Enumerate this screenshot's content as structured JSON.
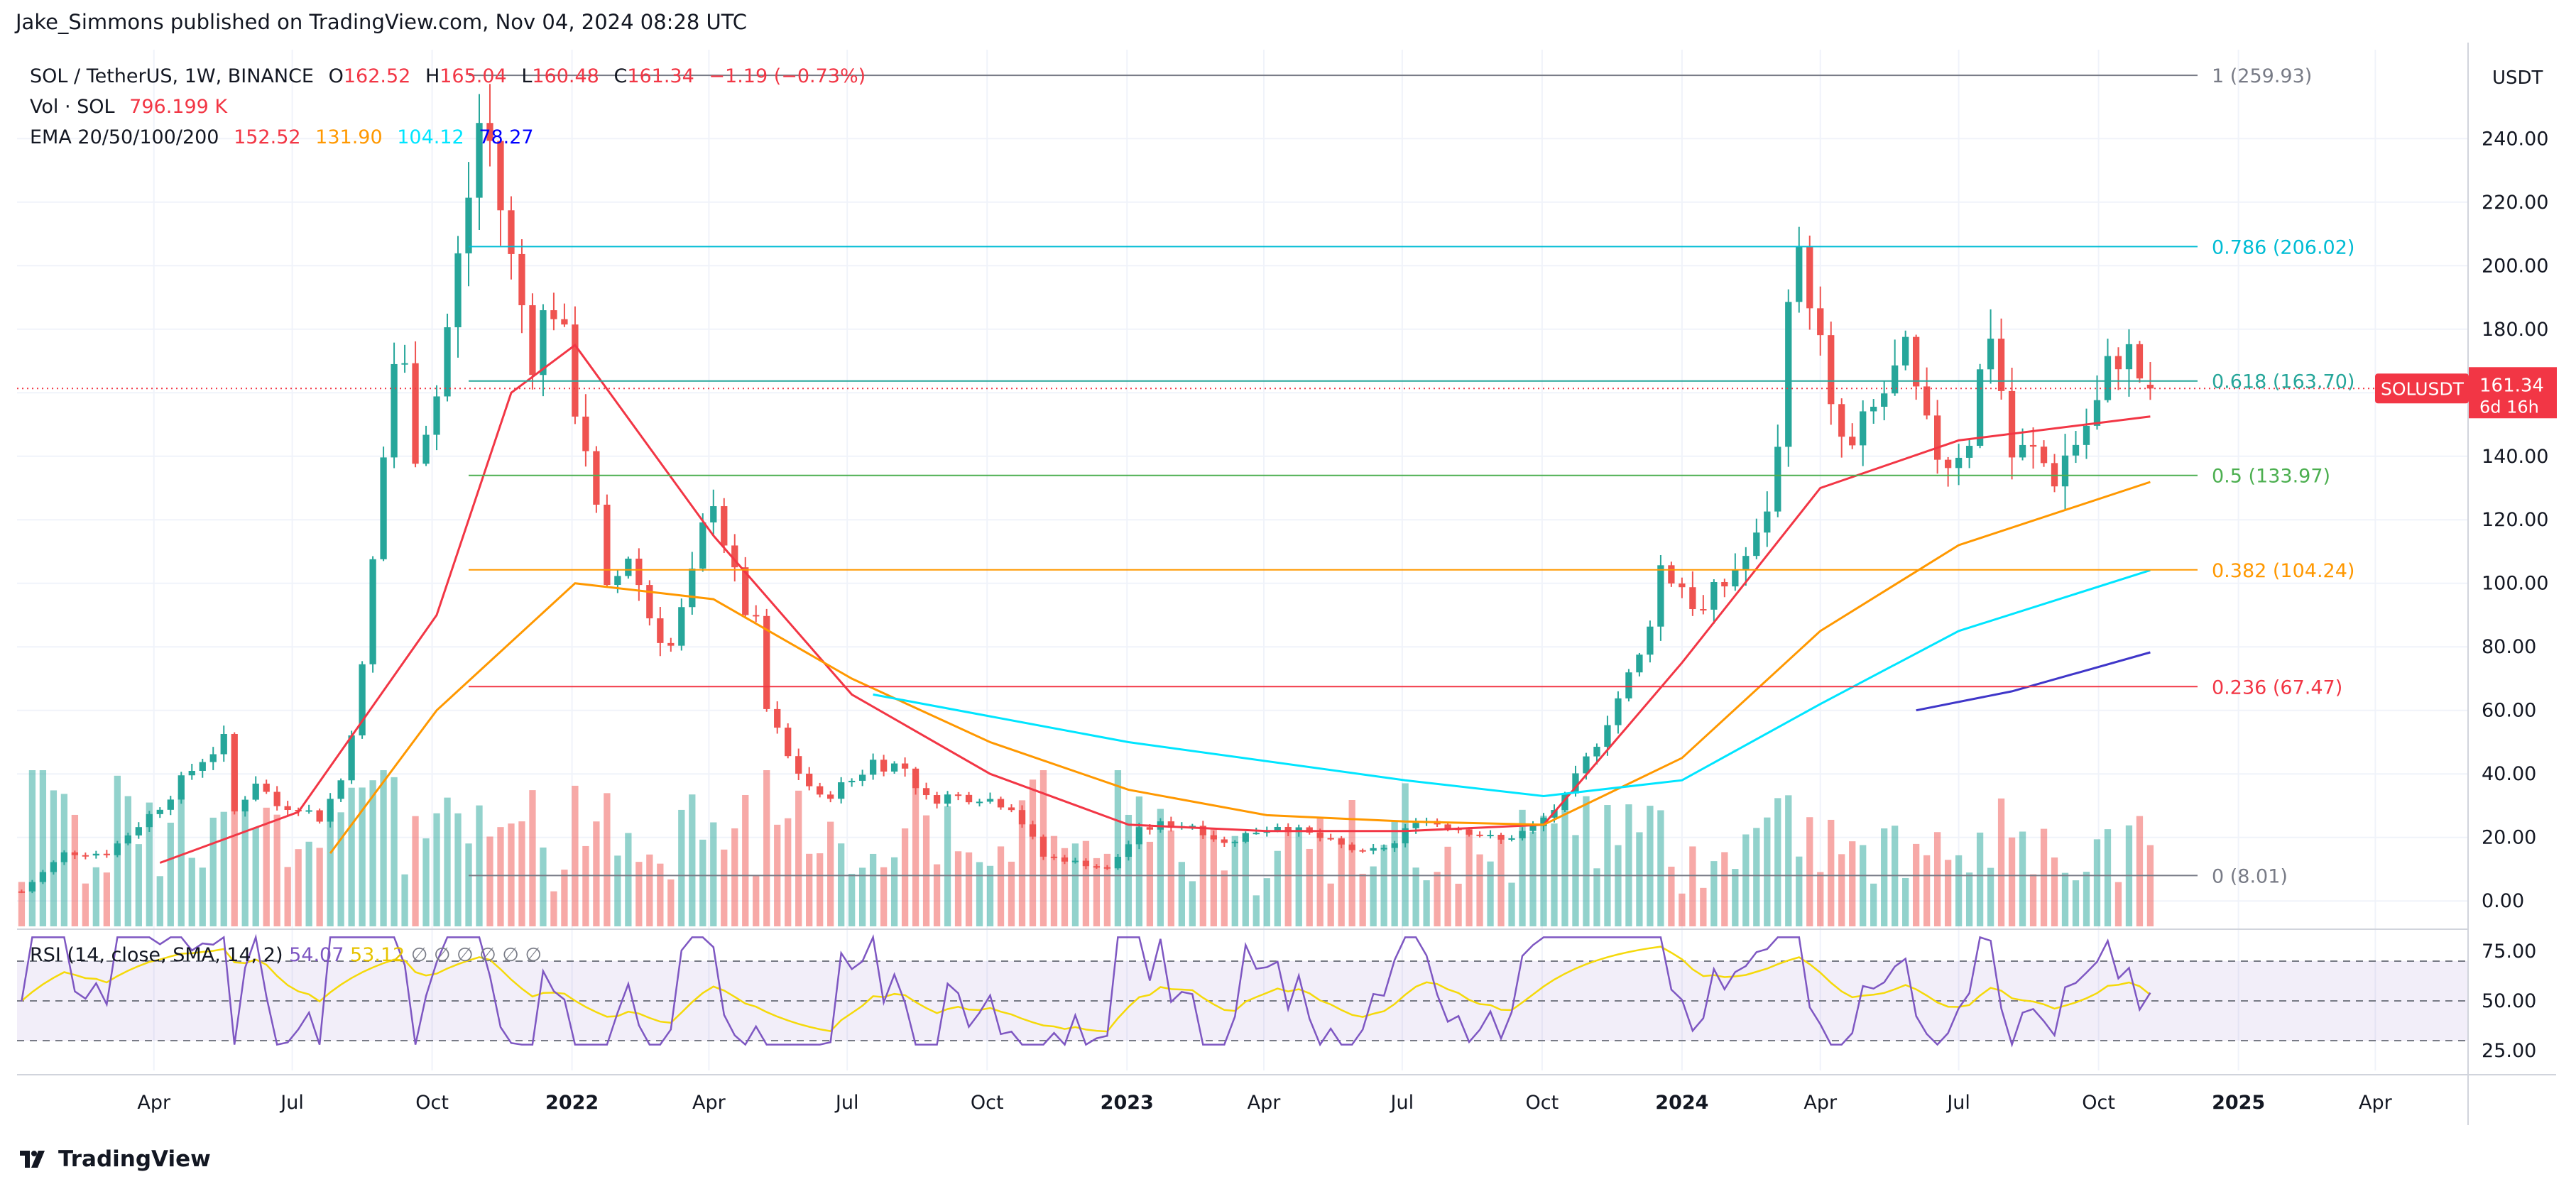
{
  "header": {
    "attribution": "Jake_Simmons published on TradingView.com, Nov 04, 2024 08:28 UTC"
  },
  "legend": {
    "symbol": "SOL / TetherUS, 1W, BINANCE",
    "open_label": "O",
    "open": "162.52",
    "high_label": "H",
    "high": "165.04",
    "low_label": "L",
    "low": "160.48",
    "close_label": "C",
    "close": "161.34",
    "change": "−1.19 (−0.73%)",
    "vol_label": "Vol · SOL",
    "vol_value": "796.199 K",
    "ema_label": "EMA 20/50/100/200",
    "ema20": "152.52",
    "ema50": "131.90",
    "ema100": "104.12",
    "ema200": "78.27"
  },
  "colors": {
    "up": "#26a69a",
    "down": "#ef5350",
    "ema20": "#f23645",
    "ema50": "#ff9800",
    "ema100": "#00e5ff",
    "ema200": "#3f36c9",
    "rsi": "#7e57c2",
    "rsi_sma": "#f5d90a",
    "fib_top": "#787b86",
    "fib_0786": "#00bcd4",
    "fib_0618": "#26a69a",
    "fib_05": "#4caf50",
    "fib_0382": "#ff9800",
    "fib_0236": "#f23645"
  },
  "chart_data": {
    "type": "candlestick",
    "unit": "USDT",
    "x_labels": [
      "Apr",
      "Jul",
      "Oct",
      "2022",
      "Apr",
      "Jul",
      "Oct",
      "2023",
      "Apr",
      "Jul",
      "Oct",
      "2024",
      "Apr",
      "Jul",
      "Oct",
      "2025",
      "Apr"
    ],
    "x_label_dates": [
      "2021-04-01",
      "2021-07-01",
      "2021-10-01",
      "2022-01-01",
      "2022-04-01",
      "2022-07-01",
      "2022-10-01",
      "2023-01-01",
      "2023-04-01",
      "2023-07-01",
      "2023-10-01",
      "2024-01-01",
      "2024-04-01",
      "2024-07-01",
      "2024-10-01",
      "2025-01-01",
      "2025-04-01"
    ],
    "y_ticks": [
      "0.00",
      "20.00",
      "40.00",
      "60.00",
      "80.00",
      "100.00",
      "120.00",
      "140.00",
      "160.00",
      "180.00",
      "200.00",
      "220.00",
      "240.00"
    ],
    "y_tick_values": [
      0,
      20,
      40,
      60,
      80,
      100,
      120,
      140,
      160,
      180,
      200,
      220,
      240
    ],
    "y_range": [
      -8,
      268
    ],
    "current_price": {
      "symbol": "SOLUSDT",
      "price": "161.34",
      "countdown": "6d 16h",
      "value": 161.34
    },
    "fib_levels": [
      {
        "label": "1 (259.93)",
        "value": 259.93
      },
      {
        "label": "0.786 (206.02)",
        "value": 206.02
      },
      {
        "label": "0.618 (163.70)",
        "value": 163.7
      },
      {
        "label": "0.5 (133.97)",
        "value": 133.97
      },
      {
        "label": "0.382 (104.24)",
        "value": 104.24
      },
      {
        "label": "0.236 (67.47)",
        "value": 67.47
      },
      {
        "label": "0 (8.01)",
        "value": 8.01
      }
    ],
    "fib_start_date": "2021-10-25",
    "series": [
      {
        "name": "SOL / TetherUS",
        "kind": "candles",
        "closes": [
          [
            "2021-01-04",
            3.0
          ],
          [
            "2021-02-01",
            15.0
          ],
          [
            "2021-03-01",
            15.0
          ],
          [
            "2021-04-05",
            30.0
          ],
          [
            "2021-05-03",
            45.0
          ],
          [
            "2021-05-17",
            50.0
          ],
          [
            "2021-05-24",
            28.0
          ],
          [
            "2021-06-07",
            38.0
          ],
          [
            "2021-06-21",
            30.0
          ],
          [
            "2021-07-05",
            30.0
          ],
          [
            "2021-07-19",
            26.0
          ],
          [
            "2021-08-02",
            38.0
          ],
          [
            "2021-08-16",
            72.0
          ],
          [
            "2021-08-30",
            140.0
          ],
          [
            "2021-09-06",
            170.0
          ],
          [
            "2021-09-13",
            165.0
          ],
          [
            "2021-09-20",
            145.0
          ],
          [
            "2021-10-04",
            160.0
          ],
          [
            "2021-10-18",
            200.0
          ],
          [
            "2021-11-01",
            245.0
          ],
          [
            "2021-11-08",
            238.0
          ],
          [
            "2021-11-22",
            200.0
          ],
          [
            "2021-12-06",
            175.0
          ],
          [
            "2021-12-20",
            190.0
          ],
          [
            "2021-12-27",
            172.0
          ],
          [
            "2022-01-10",
            145.0
          ],
          [
            "2022-01-24",
            95.0
          ],
          [
            "2022-02-07",
            110.0
          ],
          [
            "2022-02-21",
            90.0
          ],
          [
            "2022-03-07",
            80.0
          ],
          [
            "2022-03-21",
            100.0
          ],
          [
            "2022-04-04",
            130.0
          ],
          [
            "2022-04-18",
            100.0
          ],
          [
            "2022-05-02",
            85.0
          ],
          [
            "2022-05-09",
            60.0
          ],
          [
            "2022-05-23",
            45.0
          ],
          [
            "2022-06-13",
            32.0
          ],
          [
            "2022-07-04",
            38.0
          ],
          [
            "2022-07-18",
            44.0
          ],
          [
            "2022-08-08",
            42.0
          ],
          [
            "2022-08-22",
            32.0
          ],
          [
            "2022-09-05",
            33.0
          ],
          [
            "2022-09-26",
            33.0
          ],
          [
            "2022-10-17",
            30.0
          ],
          [
            "2022-11-07",
            14.0
          ],
          [
            "2022-11-21",
            13.0
          ],
          [
            "2022-12-19",
            10.0
          ],
          [
            "2023-01-09",
            22.0
          ],
          [
            "2023-01-23",
            24.0
          ],
          [
            "2023-02-13",
            24.0
          ],
          [
            "2023-03-06",
            18.0
          ],
          [
            "2023-03-20",
            21.0
          ],
          [
            "2023-04-10",
            24.0
          ],
          [
            "2023-05-01",
            21.0
          ],
          [
            "2023-06-05",
            15.0
          ],
          [
            "2023-06-26",
            18.0
          ],
          [
            "2023-07-10",
            26.0
          ],
          [
            "2023-08-07",
            23.0
          ],
          [
            "2023-09-04",
            19.0
          ],
          [
            "2023-09-25",
            23.0
          ],
          [
            "2023-10-16",
            32.0
          ],
          [
            "2023-10-30",
            44.0
          ],
          [
            "2023-11-13",
            58.0
          ],
          [
            "2023-12-04",
            76.0
          ],
          [
            "2023-12-18",
            105.0
          ],
          [
            "2024-01-01",
            100.0
          ],
          [
            "2024-01-15",
            90.0
          ],
          [
            "2024-02-05",
            105.0
          ],
          [
            "2024-02-19",
            112.0
          ],
          [
            "2024-03-04",
            140.0
          ],
          [
            "2024-03-11",
            200.0
          ],
          [
            "2024-03-25",
            195.0
          ],
          [
            "2024-04-08",
            150.0
          ],
          [
            "2024-04-22",
            140.0
          ],
          [
            "2024-05-13",
            160.0
          ],
          [
            "2024-05-27",
            168.0
          ],
          [
            "2024-06-10",
            145.0
          ],
          [
            "2024-06-24",
            140.0
          ],
          [
            "2024-07-08",
            148.0
          ],
          [
            "2024-07-22",
            182.0
          ],
          [
            "2024-08-05",
            140.0
          ],
          [
            "2024-08-19",
            140.0
          ],
          [
            "2024-09-02",
            135.0
          ],
          [
            "2024-09-16",
            145.0
          ],
          [
            "2024-09-30",
            155.0
          ],
          [
            "2024-10-14",
            175.0
          ],
          [
            "2024-11-04",
            161.34
          ]
        ]
      },
      {
        "name": "EMA 20",
        "values": [
          [
            "2021-04-05",
            12
          ],
          [
            "2021-07-05",
            28
          ],
          [
            "2021-10-04",
            90
          ],
          [
            "2021-11-22",
            160
          ],
          [
            "2022-01-03",
            175
          ],
          [
            "2022-04-04",
            115
          ],
          [
            "2022-07-04",
            65
          ],
          [
            "2022-10-03",
            40
          ],
          [
            "2023-01-02",
            24
          ],
          [
            "2023-04-03",
            22
          ],
          [
            "2023-07-03",
            22
          ],
          [
            "2023-10-02",
            24
          ],
          [
            "2024-01-01",
            75
          ],
          [
            "2024-04-01",
            130
          ],
          [
            "2024-07-01",
            145
          ],
          [
            "2024-11-04",
            152.52
          ]
        ]
      },
      {
        "name": "EMA 50",
        "values": [
          [
            "2021-07-26",
            15
          ],
          [
            "2021-10-04",
            60
          ],
          [
            "2022-01-03",
            100
          ],
          [
            "2022-04-04",
            95
          ],
          [
            "2022-07-04",
            70
          ],
          [
            "2022-10-03",
            50
          ],
          [
            "2023-01-02",
            35
          ],
          [
            "2023-04-03",
            27
          ],
          [
            "2023-07-03",
            25
          ],
          [
            "2023-10-02",
            24
          ],
          [
            "2024-01-01",
            45
          ],
          [
            "2024-04-01",
            85
          ],
          [
            "2024-07-01",
            112
          ],
          [
            "2024-11-04",
            131.9
          ]
        ]
      },
      {
        "name": "EMA 100",
        "values": [
          [
            "2022-07-18",
            65
          ],
          [
            "2023-01-02",
            50
          ],
          [
            "2023-07-03",
            38
          ],
          [
            "2023-10-02",
            33
          ],
          [
            "2024-01-01",
            38
          ],
          [
            "2024-04-01",
            62
          ],
          [
            "2024-07-01",
            85
          ],
          [
            "2024-11-04",
            104.12
          ]
        ]
      },
      {
        "name": "EMA 200",
        "values": [
          [
            "2024-06-03",
            60
          ],
          [
            "2024-08-05",
            66
          ],
          [
            "2024-11-04",
            78.27
          ]
        ]
      }
    ],
    "rsi": {
      "label": "RSI (14, close, SMA, 14, 2)",
      "rsi_value": "54.07",
      "sma_value": "53.12",
      "na_values": [
        "∅",
        "∅",
        "∅",
        "∅",
        "∅",
        "∅"
      ],
      "ticks": [
        "25.00",
        "50.00",
        "75.00"
      ],
      "tick_values": [
        25,
        50,
        75
      ],
      "bands": [
        30,
        50,
        70
      ],
      "y_range": [
        15,
        85
      ]
    }
  },
  "footer": {
    "brand": "TradingView"
  }
}
